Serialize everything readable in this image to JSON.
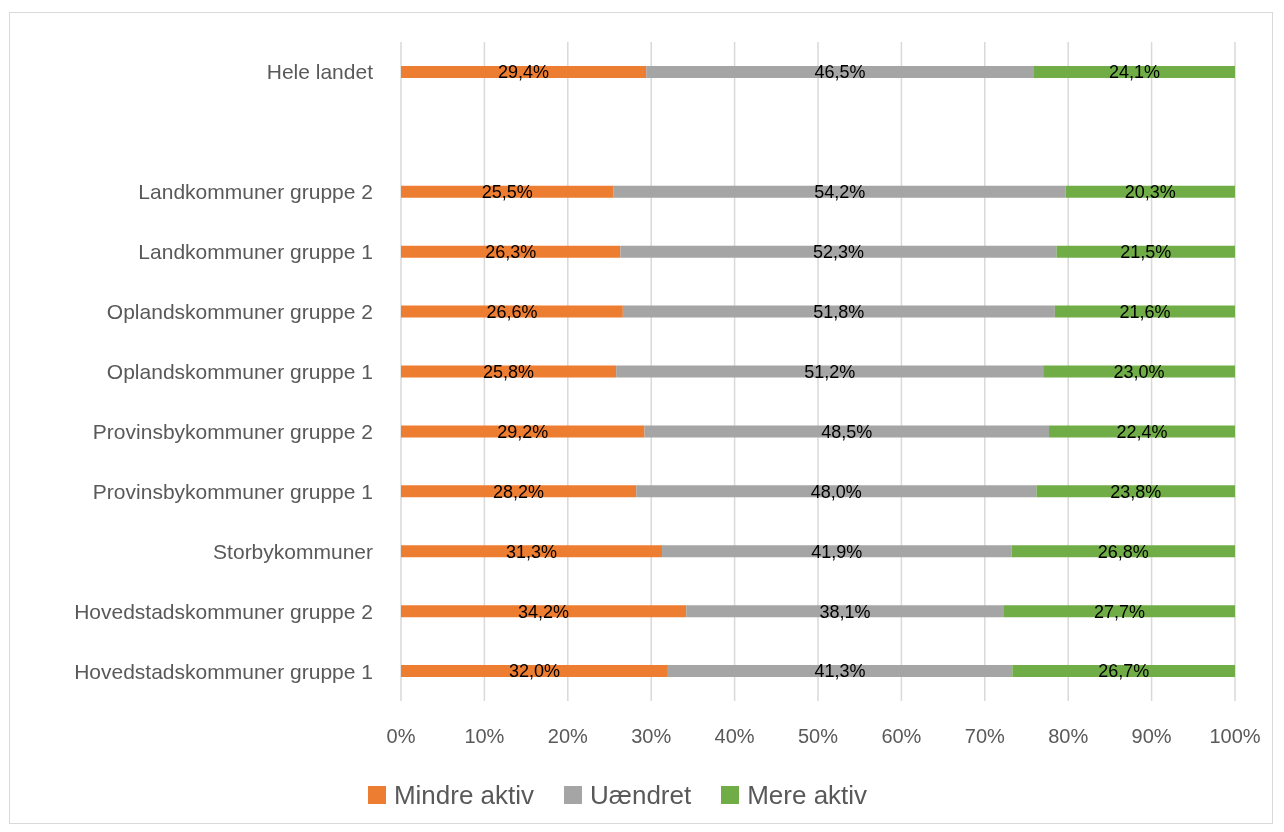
{
  "chart_data": {
    "type": "bar",
    "orientation": "horizontal",
    "stacked": true,
    "categories": [
      "Hele landet",
      null,
      "Landkommuner gruppe 2",
      "Landkommuner gruppe 1",
      "Oplandskommuner gruppe 2",
      "Oplandskommuner gruppe 1",
      "Provinsbykommuner gruppe 2",
      "Provinsbykommuner gruppe 1",
      "Storbykommuner",
      "Hovedstadskommuner gruppe 2",
      "Hovedstadskommuner gruppe 1"
    ],
    "series": [
      {
        "name": "Mindre aktiv",
        "color": "#ed7d31",
        "values": [
          29.4,
          null,
          25.5,
          26.3,
          26.6,
          25.8,
          29.2,
          28.2,
          31.3,
          34.2,
          32.0
        ],
        "value_labels": [
          "29,4%",
          null,
          "25,5%",
          "26,3%",
          "26,6%",
          "25,8%",
          "29,2%",
          "28,2%",
          "31,3%",
          "34,2%",
          "32,0%"
        ]
      },
      {
        "name": "Uændret",
        "color": "#a5a5a5",
        "values": [
          46.5,
          null,
          54.2,
          52.3,
          51.8,
          51.2,
          48.5,
          48.0,
          41.9,
          38.1,
          41.3
        ],
        "value_labels": [
          "46,5%",
          null,
          "54,2%",
          "52,3%",
          "51,8%",
          "51,2%",
          "48,5%",
          "48,0%",
          "41,9%",
          "38,1%",
          "41,3%"
        ]
      },
      {
        "name": "Mere aktiv",
        "color": "#70ad47",
        "values": [
          24.1,
          null,
          20.3,
          21.5,
          21.6,
          23.0,
          22.4,
          23.8,
          26.8,
          27.7,
          26.7
        ],
        "value_labels": [
          "24,1%",
          null,
          "20,3%",
          "21,5%",
          "21,6%",
          "23,0%",
          "22,4%",
          "23,8%",
          "26,8%",
          "27,7%",
          "26,7%"
        ]
      }
    ],
    "xlim": [
      0,
      100
    ],
    "xticks": [
      {
        "value": 0,
        "label": "0%"
      },
      {
        "value": 10,
        "label": "10%"
      },
      {
        "value": 20,
        "label": "20%"
      },
      {
        "value": 30,
        "label": "30%"
      },
      {
        "value": 40,
        "label": "40%"
      },
      {
        "value": 50,
        "label": "50%"
      },
      {
        "value": 60,
        "label": "60%"
      },
      {
        "value": 70,
        "label": "70%"
      },
      {
        "value": 80,
        "label": "80%"
      },
      {
        "value": 90,
        "label": "90%"
      },
      {
        "value": 100,
        "label": "100%"
      }
    ],
    "grid": "x",
    "legend": "bottom"
  }
}
